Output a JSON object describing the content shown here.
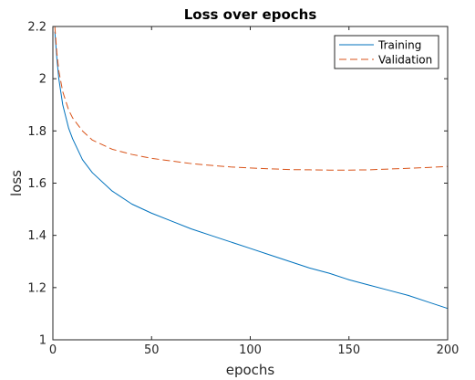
{
  "chart_data": {
    "type": "line",
    "title": "Loss over epochs",
    "xlabel": "epochs",
    "ylabel": "loss",
    "xlim": [
      0,
      200
    ],
    "ylim": [
      1,
      2.2
    ],
    "xticks": [
      0,
      50,
      100,
      150,
      200
    ],
    "yticks": [
      1,
      1.2,
      1.4,
      1.6,
      1.8,
      2,
      2.2
    ],
    "ytick_labels": [
      "1",
      "1.2",
      "1.4",
      "1.6",
      "1.8",
      "2",
      "2.2"
    ],
    "grid": false,
    "legend_position": "top-right",
    "series": [
      {
        "name": "Training",
        "color": "#0072BD",
        "dash": "solid",
        "x": [
          1,
          2,
          3,
          5,
          8,
          10,
          15,
          20,
          30,
          40,
          50,
          60,
          70,
          80,
          90,
          100,
          110,
          120,
          130,
          140,
          150,
          160,
          170,
          180,
          190,
          200
        ],
        "y": [
          2.18,
          2.08,
          2.0,
          1.9,
          1.81,
          1.77,
          1.69,
          1.64,
          1.57,
          1.52,
          1.485,
          1.455,
          1.425,
          1.4,
          1.375,
          1.35,
          1.325,
          1.3,
          1.275,
          1.255,
          1.23,
          1.21,
          1.19,
          1.17,
          1.145,
          1.12
        ]
      },
      {
        "name": "Validation",
        "color": "#D95319",
        "dash": "dashed",
        "x": [
          1,
          2,
          3,
          5,
          8,
          10,
          15,
          20,
          30,
          40,
          50,
          60,
          70,
          80,
          90,
          100,
          110,
          120,
          130,
          140,
          150,
          160,
          170,
          180,
          190,
          200
        ],
        "y": [
          2.2,
          2.1,
          2.03,
          1.95,
          1.88,
          1.85,
          1.8,
          1.765,
          1.73,
          1.71,
          1.695,
          1.685,
          1.675,
          1.668,
          1.662,
          1.658,
          1.655,
          1.652,
          1.651,
          1.65,
          1.65,
          1.651,
          1.654,
          1.657,
          1.66,
          1.664
        ]
      }
    ]
  }
}
